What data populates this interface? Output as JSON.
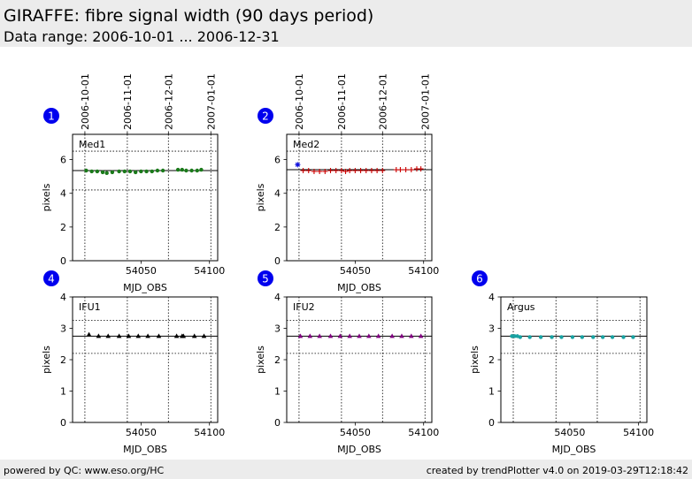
{
  "header": {
    "title": "GIRAFFE: fibre signal width (90 days period)",
    "subtitle": "Data range: 2006-10-01 ... 2006-12-31"
  },
  "footer": {
    "left": "powered by QC: www.eso.org/HC",
    "right": "created by trendPlotter v4.0 on 2019-03-29T12:18:42"
  },
  "chart_data": [
    {
      "type": "scatter",
      "panel_number": "1",
      "name": "Med1",
      "xlabel": "MJD_OBS",
      "ylabel": "pixels",
      "xlim": [
        54000,
        54106
      ],
      "ylim": [
        0,
        7.5
      ],
      "yticks": [
        0,
        2,
        4,
        6
      ],
      "xticks": [
        54050,
        54100
      ],
      "top_date_ticks": [
        {
          "label": "2006-10-01",
          "mjd": 54009
        },
        {
          "label": "2006-11-01",
          "mjd": 54040
        },
        {
          "label": "2006-12-01",
          "mjd": 54070
        },
        {
          "label": "2007-01-01",
          "mjd": 54101
        }
      ],
      "reference_line": 5.35,
      "tolerance_lines": [
        4.2,
        6.5
      ],
      "marker": "circle",
      "color": "#1a7a1a",
      "series": [
        {
          "points": [
            [
              54010,
              5.35
            ],
            [
              54014,
              5.3
            ],
            [
              54018,
              5.3
            ],
            [
              54022,
              5.25
            ],
            [
              54025,
              5.2
            ],
            [
              54029,
              5.25
            ],
            [
              54034,
              5.3
            ],
            [
              54038,
              5.3
            ],
            [
              54042,
              5.3
            ],
            [
              54046,
              5.25
            ],
            [
              54050,
              5.3
            ],
            [
              54054,
              5.3
            ],
            [
              54058,
              5.3
            ],
            [
              54062,
              5.35
            ],
            [
              54066,
              5.35
            ],
            [
              54077,
              5.4
            ],
            [
              54080,
              5.4
            ],
            [
              54083,
              5.35
            ],
            [
              54087,
              5.35
            ],
            [
              54091,
              5.35
            ],
            [
              54094,
              5.4
            ]
          ]
        }
      ]
    },
    {
      "type": "scatter",
      "panel_number": "2",
      "name": "Med2",
      "xlabel": "MJD_OBS",
      "ylabel": "pixels",
      "xlim": [
        54000,
        54106
      ],
      "ylim": [
        0,
        7.5
      ],
      "yticks": [
        0,
        2,
        4,
        6
      ],
      "xticks": [
        54050,
        54100
      ],
      "top_date_ticks": [
        {
          "label": "2006-10-01",
          "mjd": 54009
        },
        {
          "label": "2006-11-01",
          "mjd": 54040
        },
        {
          "label": "2006-12-01",
          "mjd": 54070
        },
        {
          "label": "2007-01-01",
          "mjd": 54101
        }
      ],
      "reference_line": 5.4,
      "tolerance_lines": [
        4.2,
        6.5
      ],
      "marker": "plus",
      "color": "#cc0000",
      "outlier_color": "#1111dd",
      "outliers": [
        [
          54008,
          5.7
        ]
      ],
      "series": [
        {
          "points": [
            [
              54012,
              5.35
            ],
            [
              54016,
              5.35
            ],
            [
              54020,
              5.3
            ],
            [
              54024,
              5.3
            ],
            [
              54028,
              5.3
            ],
            [
              54032,
              5.35
            ],
            [
              54036,
              5.35
            ],
            [
              54040,
              5.35
            ],
            [
              54043,
              5.3
            ],
            [
              54046,
              5.35
            ],
            [
              54050,
              5.35
            ],
            [
              54054,
              5.35
            ],
            [
              54058,
              5.35
            ],
            [
              54062,
              5.35
            ],
            [
              54066,
              5.35
            ],
            [
              54070,
              5.35
            ],
            [
              54080,
              5.4
            ],
            [
              54083,
              5.4
            ],
            [
              54087,
              5.4
            ],
            [
              54091,
              5.4
            ],
            [
              54095,
              5.45
            ],
            [
              54098,
              5.45
            ]
          ]
        }
      ]
    },
    {
      "type": "scatter",
      "panel_number": "4",
      "name": "IFU1",
      "xlabel": "MJD_OBS",
      "ylabel": "pixels",
      "xlim": [
        54000,
        54106
      ],
      "ylim": [
        0,
        4
      ],
      "yticks": [
        0,
        1,
        2,
        3,
        4
      ],
      "xticks": [
        54050,
        54100
      ],
      "reference_line": 2.75,
      "tolerance_lines": [
        2.2,
        3.25
      ],
      "marker": "triangle",
      "color": "#000000",
      "series": [
        {
          "points": [
            [
              54012,
              2.8
            ],
            [
              54019,
              2.75
            ],
            [
              54026,
              2.75
            ],
            [
              54034,
              2.75
            ],
            [
              54041,
              2.75
            ],
            [
              54048,
              2.75
            ],
            [
              54055,
              2.75
            ],
            [
              54063,
              2.75
            ],
            [
              54076,
              2.75
            ],
            [
              54080,
              2.75
            ],
            [
              54081,
              2.75
            ],
            [
              54089,
              2.75
            ],
            [
              54096,
              2.75
            ]
          ]
        }
      ]
    },
    {
      "type": "scatter",
      "panel_number": "5",
      "name": "IFU2",
      "xlabel": "MJD_OBS",
      "ylabel": "pixels",
      "xlim": [
        54000,
        54106
      ],
      "ylim": [
        0,
        4
      ],
      "yticks": [
        0,
        1,
        2,
        3,
        4
      ],
      "xticks": [
        54050,
        54100
      ],
      "reference_line": 2.75,
      "tolerance_lines": [
        2.2,
        3.25
      ],
      "marker": "triangle",
      "color": "#800080",
      "series": [
        {
          "points": [
            [
              54010,
              2.75
            ],
            [
              54017,
              2.75
            ],
            [
              54024,
              2.75
            ],
            [
              54032,
              2.75
            ],
            [
              54039,
              2.75
            ],
            [
              54046,
              2.75
            ],
            [
              54053,
              2.75
            ],
            [
              54060,
              2.75
            ],
            [
              54067,
              2.75
            ],
            [
              54077,
              2.75
            ],
            [
              54084,
              2.75
            ],
            [
              54091,
              2.75
            ],
            [
              54098,
              2.75
            ]
          ]
        }
      ]
    },
    {
      "type": "scatter",
      "panel_number": "6",
      "name": "Argus",
      "xlabel": "MJD_OBS",
      "ylabel": "pixels",
      "xlim": [
        54000,
        54106
      ],
      "ylim": [
        0,
        4
      ],
      "yticks": [
        0,
        1,
        2,
        3,
        4
      ],
      "xticks": [
        54050,
        54100
      ],
      "reference_line": 2.75,
      "tolerance_lines": [
        2.2,
        3.25
      ],
      "marker": "circle",
      "color": "#17a2a2",
      "series": [
        {
          "points": [
            [
              54008,
              2.75
            ],
            [
              54010,
              2.75
            ],
            [
              54012,
              2.75
            ],
            [
              54014,
              2.72
            ],
            [
              54021,
              2.72
            ],
            [
              54029,
              2.72
            ],
            [
              54037,
              2.72
            ],
            [
              54044,
              2.72
            ],
            [
              54052,
              2.72
            ],
            [
              54059,
              2.72
            ],
            [
              54067,
              2.72
            ],
            [
              54074,
              2.72
            ],
            [
              54081,
              2.72
            ],
            [
              54089,
              2.72
            ],
            [
              54096,
              2.72
            ]
          ]
        }
      ]
    }
  ]
}
